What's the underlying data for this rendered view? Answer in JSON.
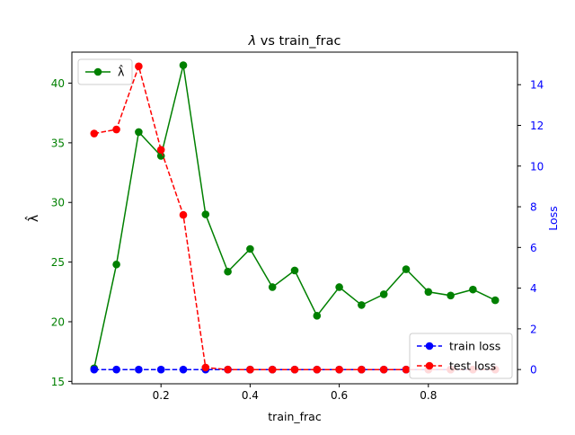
{
  "chart_data": {
    "type": "line",
    "title_symbol": "λ",
    "title_rest": " vs train_frac",
    "xlabel": "train_frac",
    "ylabel_left": "λ̂",
    "ylabel_right": "Loss",
    "xlim": [
      0.0,
      1.0
    ],
    "ylim_left": [
      14.8,
      42.6
    ],
    "ylim_right": [
      -0.7,
      15.6
    ],
    "x": [
      0.05,
      0.1,
      0.15,
      0.2,
      0.25,
      0.3,
      0.35,
      0.4,
      0.45,
      0.5,
      0.55,
      0.6,
      0.65,
      0.7,
      0.75,
      0.8,
      0.85,
      0.9,
      0.95
    ],
    "x_ticks": [
      0.2,
      0.4,
      0.6,
      0.8
    ],
    "x_tick_labels": [
      "0.2",
      "0.4",
      "0.6",
      "0.8"
    ],
    "y_ticks_left": [
      15,
      20,
      25,
      30,
      35,
      40
    ],
    "y_tick_labels_left": [
      "15",
      "20",
      "25",
      "30",
      "35",
      "40"
    ],
    "y_ticks_right": [
      0,
      2,
      4,
      6,
      8,
      10,
      12,
      14
    ],
    "y_tick_labels_right": [
      "0",
      "2",
      "4",
      "6",
      "8",
      "10",
      "12",
      "14"
    ],
    "grid": false,
    "legends": [
      {
        "placement": "top-left",
        "entries": [
          "λ̂"
        ]
      },
      {
        "placement": "bottom-right",
        "entries": [
          "train loss",
          "test loss"
        ]
      }
    ],
    "series": [
      {
        "name": "λ̂",
        "axis": "left",
        "color": "#008000",
        "linestyle": "solid",
        "values": [
          16.1,
          24.8,
          35.9,
          33.9,
          41.5,
          29.0,
          24.2,
          26.1,
          22.9,
          24.3,
          20.5,
          22.9,
          21.4,
          22.3,
          24.4,
          22.5,
          22.2,
          22.7,
          21.8
        ]
      },
      {
        "name": "train loss",
        "axis": "right",
        "color": "#0000ff",
        "linestyle": "dashed",
        "values": [
          0.0,
          0.0,
          0.0,
          0.0,
          0.0,
          0.0,
          0.0,
          0.0,
          0.0,
          0.0,
          0.0,
          0.0,
          0.0,
          0.0,
          0.0,
          0.0,
          0.0,
          0.0,
          0.0
        ]
      },
      {
        "name": "test loss",
        "axis": "right",
        "color": "#ff0000",
        "linestyle": "dashed",
        "values": [
          11.6,
          11.8,
          14.9,
          10.8,
          7.6,
          0.1,
          0.0,
          0.0,
          0.0,
          0.0,
          0.0,
          0.0,
          0.0,
          0.0,
          0.0,
          0.0,
          0.0,
          0.0,
          0.0
        ]
      }
    ],
    "colors": {
      "left_axis": "#008000",
      "right_axis": "#0000ff",
      "frame": "#000000"
    }
  }
}
